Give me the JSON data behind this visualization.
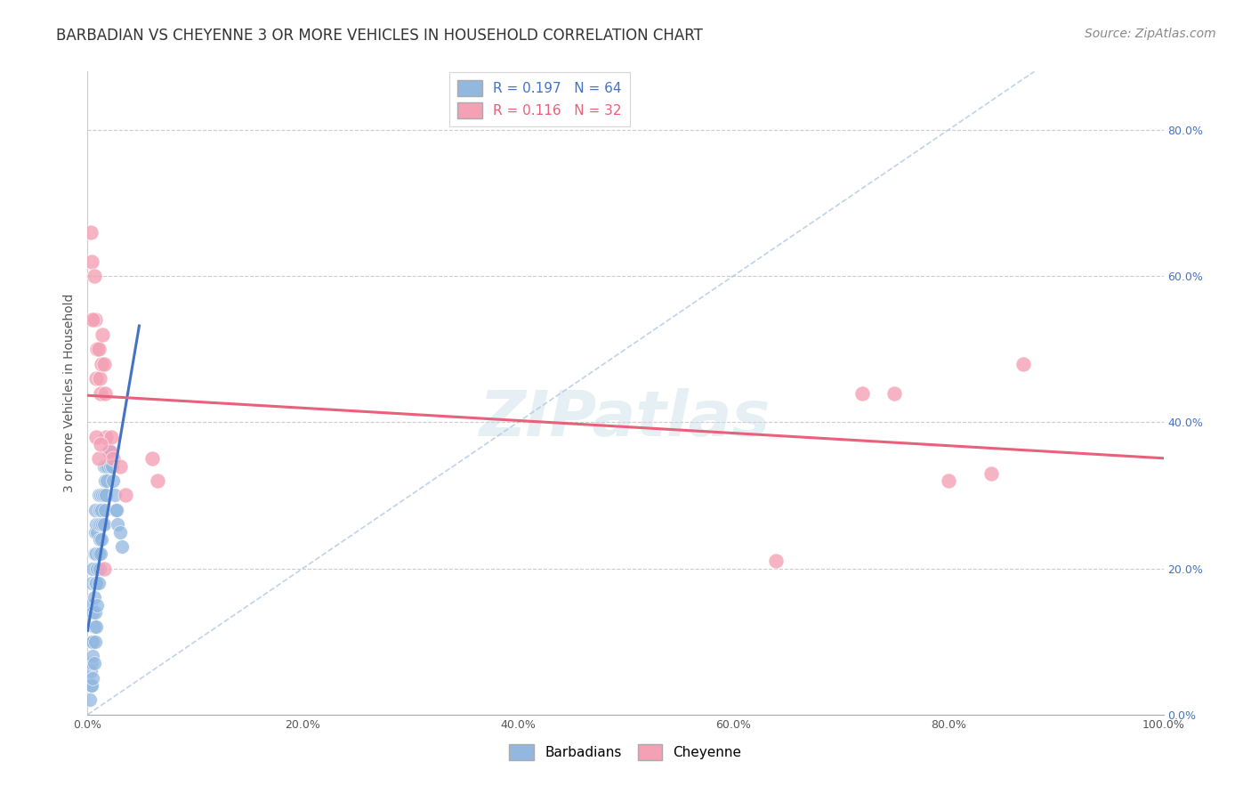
{
  "title": "BARBADIAN VS CHEYENNE 3 OR MORE VEHICLES IN HOUSEHOLD CORRELATION CHART",
  "source": "Source: ZipAtlas.com",
  "ylabel": "3 or more Vehicles in Household",
  "xlim": [
    0.0,
    1.0
  ],
  "ylim": [
    0.0,
    0.88
  ],
  "watermark_text": "ZIPatlas",
  "barbadian_x": [
    0.002,
    0.003,
    0.003,
    0.003,
    0.004,
    0.004,
    0.004,
    0.004,
    0.005,
    0.005,
    0.005,
    0.005,
    0.005,
    0.006,
    0.006,
    0.006,
    0.006,
    0.007,
    0.007,
    0.007,
    0.007,
    0.007,
    0.007,
    0.008,
    0.008,
    0.008,
    0.008,
    0.009,
    0.009,
    0.009,
    0.01,
    0.01,
    0.01,
    0.01,
    0.011,
    0.011,
    0.011,
    0.012,
    0.012,
    0.012,
    0.013,
    0.013,
    0.014,
    0.014,
    0.015,
    0.015,
    0.015,
    0.016,
    0.016,
    0.017,
    0.017,
    0.018,
    0.019,
    0.02,
    0.021,
    0.022,
    0.023,
    0.024,
    0.025,
    0.026,
    0.027,
    0.028,
    0.03,
    0.032
  ],
  "barbadian_y": [
    0.02,
    0.04,
    0.06,
    0.15,
    0.04,
    0.07,
    0.1,
    0.18,
    0.05,
    0.08,
    0.1,
    0.14,
    0.2,
    0.07,
    0.12,
    0.16,
    0.22,
    0.1,
    0.14,
    0.18,
    0.22,
    0.25,
    0.28,
    0.12,
    0.18,
    0.22,
    0.26,
    0.15,
    0.2,
    0.25,
    0.18,
    0.22,
    0.26,
    0.3,
    0.2,
    0.24,
    0.28,
    0.22,
    0.26,
    0.3,
    0.24,
    0.28,
    0.26,
    0.3,
    0.26,
    0.3,
    0.34,
    0.28,
    0.32,
    0.3,
    0.34,
    0.32,
    0.34,
    0.36,
    0.34,
    0.36,
    0.34,
    0.32,
    0.3,
    0.28,
    0.28,
    0.26,
    0.25,
    0.23
  ],
  "cheyenne_x": [
    0.004,
    0.006,
    0.007,
    0.008,
    0.009,
    0.01,
    0.011,
    0.012,
    0.013,
    0.014,
    0.015,
    0.016,
    0.017,
    0.02,
    0.022,
    0.024,
    0.03,
    0.035,
    0.06,
    0.065,
    0.64,
    0.72,
    0.75,
    0.8,
    0.84,
    0.87,
    0.003,
    0.005,
    0.008,
    0.01,
    0.012,
    0.015
  ],
  "cheyenne_y": [
    0.62,
    0.6,
    0.54,
    0.46,
    0.5,
    0.5,
    0.46,
    0.44,
    0.48,
    0.52,
    0.48,
    0.44,
    0.38,
    0.36,
    0.38,
    0.35,
    0.34,
    0.3,
    0.35,
    0.32,
    0.21,
    0.44,
    0.44,
    0.32,
    0.33,
    0.48,
    0.66,
    0.54,
    0.38,
    0.35,
    0.37,
    0.2
  ],
  "barbadian_color": "#92b8e0",
  "cheyenne_color": "#f4a0b5",
  "barbadian_line_color": "#4472c4",
  "cheyenne_line_color": "#e8607a",
  "diagonal_color": "#b0c8e0",
  "title_fontsize": 12,
  "source_fontsize": 10,
  "axis_label_fontsize": 10,
  "tick_fontsize": 9,
  "legend_fontsize": 11,
  "ytick_color": "#4472c4",
  "xtick_color": "#555555"
}
